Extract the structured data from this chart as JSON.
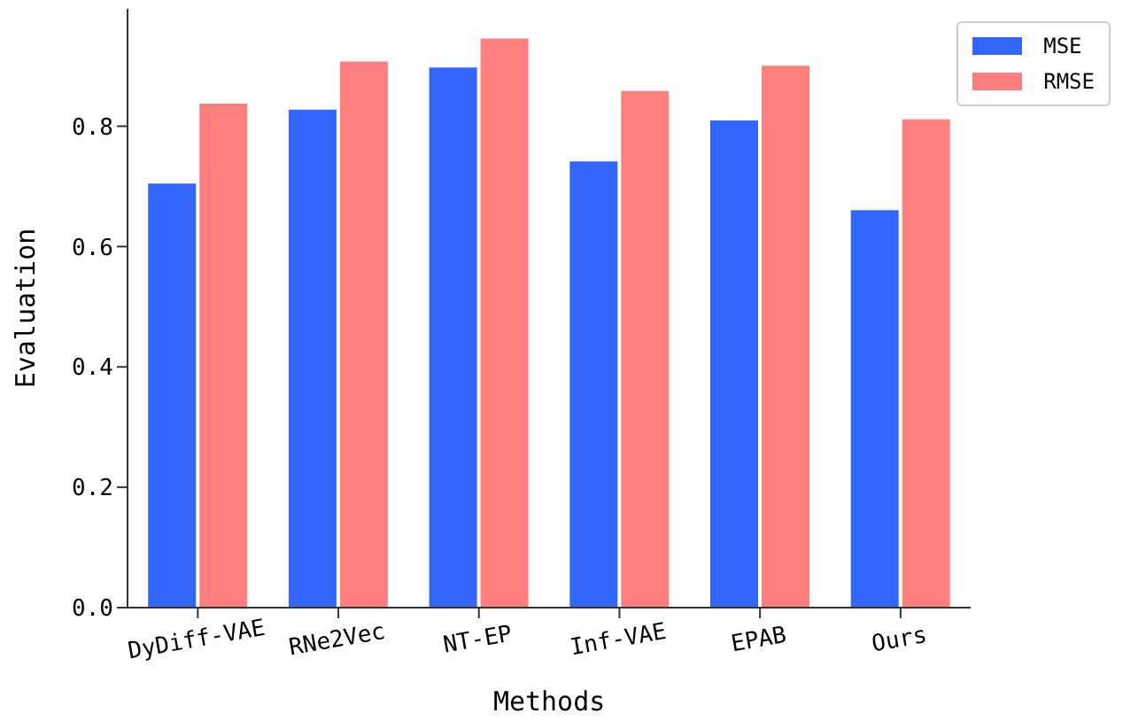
{
  "chart_data": {
    "type": "bar",
    "xlabel": "Methods",
    "ylabel": "Evaluation",
    "categories": [
      "DyDiff-VAE",
      "RNe2Vec",
      "NT-EP",
      "Inf-VAE",
      "EPAB",
      "Ours"
    ],
    "series": [
      {
        "name": "MSE",
        "color": "#3366ff",
        "values": [
          0.706,
          0.829,
          0.899,
          0.743,
          0.811,
          0.662
        ]
      },
      {
        "name": "RMSE",
        "color": "#ff7f7f",
        "values": [
          0.839,
          0.909,
          0.947,
          0.86,
          0.902,
          0.813
        ]
      }
    ],
    "ylim": [
      0,
      0.995
    ],
    "yticks": [
      {
        "value": 0,
        "label": "0.0"
      },
      {
        "value": 0.2,
        "label": "0.2"
      },
      {
        "value": 0.4,
        "label": "0.4"
      },
      {
        "value": 0.6,
        "label": "0.6"
      },
      {
        "value": 0.8,
        "label": "0.8"
      }
    ],
    "grid": false,
    "legend": "top right"
  }
}
